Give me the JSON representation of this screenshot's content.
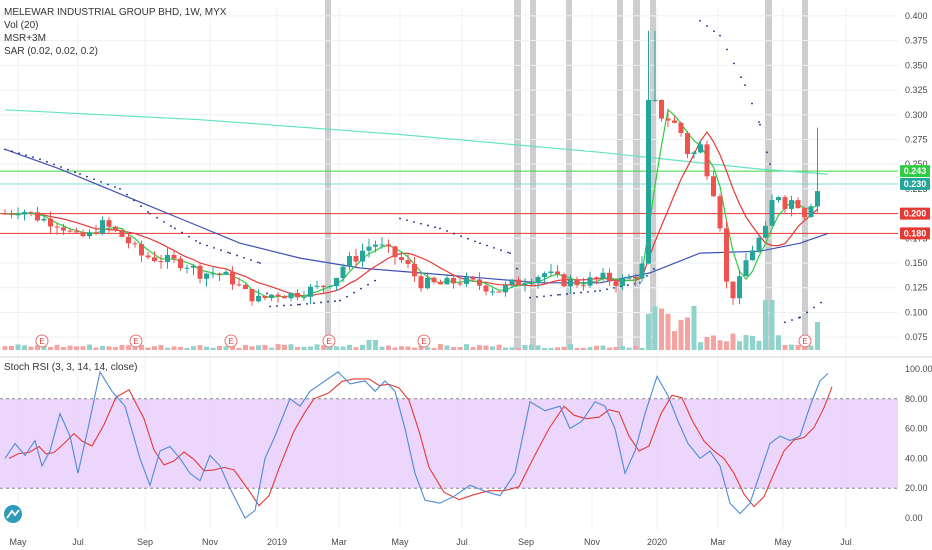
{
  "chart_data": {
    "type": "candlestick",
    "legend": {
      "title": "MELEWAR INDUSTRIAL GROUP BHD, 1W, MYX",
      "vol": "Vol (20)",
      "msr": "MSR+3M",
      "sar": "SAR (0.02, 0.02, 0.2)"
    },
    "price_axis": {
      "ticks": [
        "0.400",
        "0.375",
        "0.350",
        "0.325",
        "0.300",
        "0.275",
        "0.250",
        "0.225",
        "0.200",
        "0.175",
        "0.150",
        "0.125",
        "0.100",
        "0.075"
      ],
      "range": [
        0.062,
        0.408
      ]
    },
    "rsi_panel": {
      "title": "Stoch RSI (3, 3, 14, 14, close)",
      "ticks": [
        "100.00",
        "80.00",
        "60.00",
        "40.00",
        "20.00",
        "0.00"
      ],
      "range": [
        -8,
        106
      ],
      "band": [
        20,
        80
      ]
    },
    "x_labels": [
      "May",
      "Jul",
      "Sep",
      "Nov",
      "2019",
      "Mar",
      "May",
      "Jul",
      "Sep",
      "Nov",
      "2020",
      "Mar",
      "May",
      "Jul"
    ],
    "price_tags": [
      {
        "value": 0.243,
        "label": "0.243",
        "color": "#2ecc40"
      },
      {
        "value": 0.23,
        "label": "0.230",
        "color": "#26a69a"
      },
      {
        "value": 0.2,
        "label": "0.200",
        "color": "#e53935"
      },
      {
        "value": 0.18,
        "label": "0.180",
        "color": "#e53935"
      }
    ],
    "horizontal_lines": [
      {
        "value": 0.243,
        "color": "#3bd63b"
      },
      {
        "value": 0.23,
        "color": "#7fd8d2"
      },
      {
        "value": 0.2,
        "color": "#e53935"
      },
      {
        "value": 0.18,
        "color": "#e53935"
      }
    ],
    "earnings_marker": "E",
    "colors": {
      "up": "#26a69a",
      "down": "#ef5350",
      "ma_long": "#3f51b5",
      "ma_mid": "#e53935",
      "ma_short": "#2ecc40",
      "ma_cyan": "#64e3c3",
      "rsi_k": "#4f8ad6",
      "rsi_d": "#e53935",
      "band": "#e7ccfb"
    }
  }
}
